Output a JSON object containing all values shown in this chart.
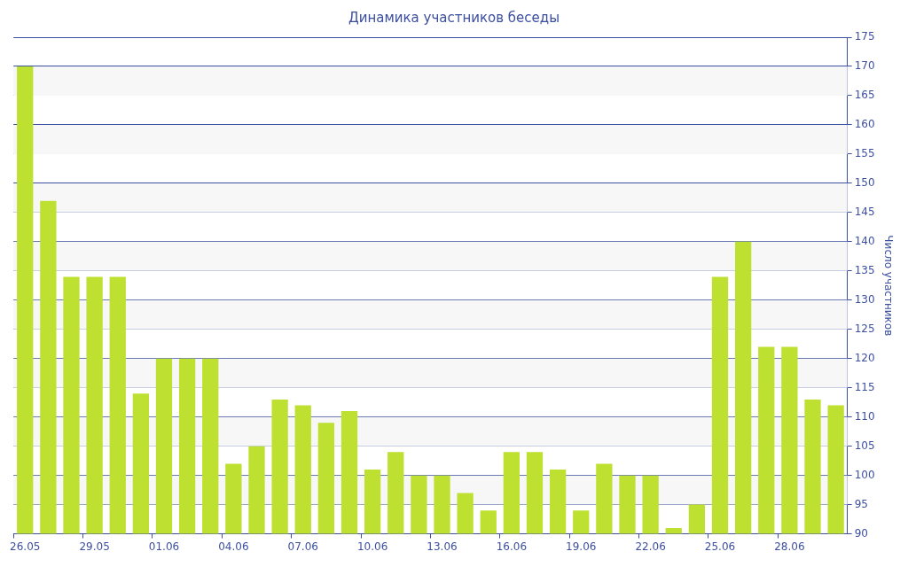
{
  "chart_data": {
    "type": "bar",
    "title": "Динамика участников беседы",
    "ylabel": "Число участников",
    "categories": [
      "26.05",
      null,
      null,
      "29.05",
      null,
      null,
      "01.06",
      null,
      null,
      "04.06",
      null,
      null,
      "07.06",
      null,
      null,
      "10.06",
      null,
      null,
      "13.06",
      null,
      null,
      "16.06",
      null,
      null,
      "19.06",
      null,
      null,
      "22.06",
      null,
      null,
      "25.06",
      null,
      null,
      "28.06",
      null,
      null
    ],
    "values": [
      170,
      147,
      134,
      134,
      134,
      114,
      120,
      120,
      120,
      102,
      105,
      113,
      112,
      109,
      111,
      101,
      104,
      100,
      100,
      97,
      94,
      104,
      104,
      101,
      94,
      102,
      100,
      100,
      91,
      95,
      134,
      140,
      122,
      122,
      113,
      112
    ],
    "color": "#bde031",
    "ylim": [
      90,
      175
    ],
    "yticks": [
      90,
      95,
      100,
      105,
      110,
      115,
      120,
      125,
      130,
      135,
      140,
      145,
      150,
      155,
      160,
      165,
      170,
      175
    ],
    "grid": "y",
    "legend": false
  }
}
